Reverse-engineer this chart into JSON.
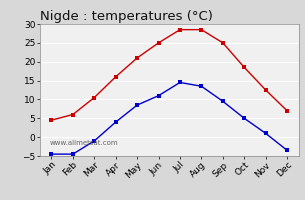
{
  "title": "Nigde : temperatures (°C)",
  "months": [
    "Jan",
    "Feb",
    "Mar",
    "Apr",
    "May",
    "Jun",
    "Jul",
    "Aug",
    "Sep",
    "Oct",
    "Nov",
    "Dec"
  ],
  "max_temps": [
    4.5,
    6.0,
    10.5,
    16.0,
    21.0,
    25.0,
    28.5,
    28.5,
    25.0,
    18.5,
    12.5,
    7.0
  ],
  "min_temps": [
    -4.5,
    -4.5,
    -1.0,
    4.0,
    8.5,
    11.0,
    14.5,
    13.5,
    9.5,
    5.0,
    1.0,
    -3.5
  ],
  "max_color": "#cc0000",
  "min_color": "#0000cc",
  "ylim": [
    -5,
    30
  ],
  "yticks": [
    -5,
    0,
    5,
    10,
    15,
    20,
    25,
    30
  ],
  "bg_color": "#d8d8d8",
  "plot_bg_color": "#f0f0f0",
  "grid_color": "#ffffff",
  "watermark": "www.allmetsat.com",
  "title_fontsize": 9.5,
  "tick_fontsize": 6.5
}
